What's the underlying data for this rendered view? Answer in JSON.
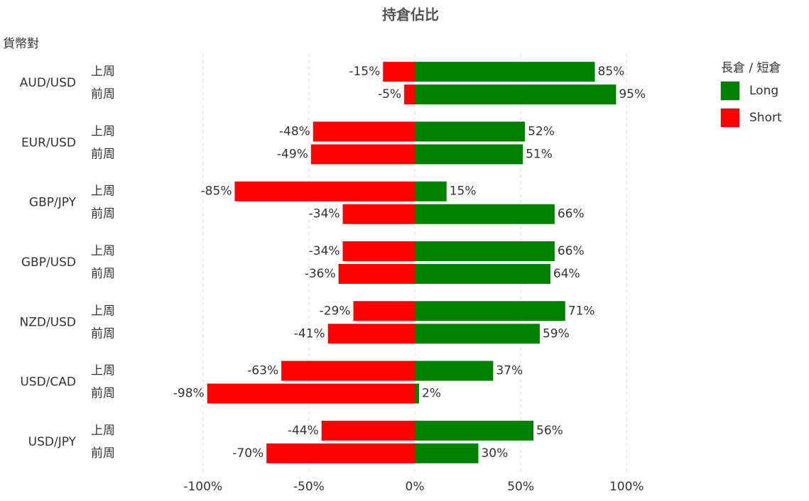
{
  "chart_data": {
    "type": "bar",
    "orientation": "horizontal",
    "title": "持倉佔比",
    "y_label": "貨幣對",
    "legend_title": "長倉 / 短倉",
    "legend_position": "top-right",
    "categories": [
      "AUD/USD",
      "EUR/USD",
      "GBP/JPY",
      "GBP/USD",
      "NZD/USD",
      "USD/CAD",
      "USD/JPY"
    ],
    "subcategories": [
      "上周",
      "前周"
    ],
    "series": [
      {
        "name": "Long",
        "color": "#008000",
        "values": [
          [
            85,
            95
          ],
          [
            52,
            51
          ],
          [
            15,
            66
          ],
          [
            66,
            64
          ],
          [
            71,
            59
          ],
          [
            37,
            2
          ],
          [
            56,
            30
          ]
        ],
        "value_labels": [
          [
            "85%",
            "95%"
          ],
          [
            "52%",
            "51%"
          ],
          [
            "15%",
            "66%"
          ],
          [
            "66%",
            "64%"
          ],
          [
            "71%",
            "59%"
          ],
          [
            "37%",
            "2%"
          ],
          [
            "56%",
            "30%"
          ]
        ]
      },
      {
        "name": "Short",
        "color": "#ff0000",
        "values": [
          [
            -15,
            -5
          ],
          [
            -48,
            -49
          ],
          [
            -85,
            -34
          ],
          [
            -34,
            -36
          ],
          [
            -29,
            -41
          ],
          [
            -63,
            -98
          ],
          [
            -44,
            -70
          ]
        ],
        "value_labels": [
          [
            "-15%",
            "-5%"
          ],
          [
            "-48%",
            "-49%"
          ],
          [
            "-85%",
            "-34%"
          ],
          [
            "-34%",
            "-36%"
          ],
          [
            "-29%",
            "-41%"
          ],
          [
            "-63%",
            "-98%"
          ],
          [
            "-44%",
            "-70%"
          ]
        ]
      }
    ],
    "xlim": [
      -115,
      115
    ],
    "xticks": [
      {
        "value": -100,
        "label": "-100%"
      },
      {
        "value": -50,
        "label": "-50%"
      },
      {
        "value": 0,
        "label": "0%"
      },
      {
        "value": 50,
        "label": "50%"
      },
      {
        "value": 100,
        "label": "100%"
      }
    ],
    "grid": true
  }
}
